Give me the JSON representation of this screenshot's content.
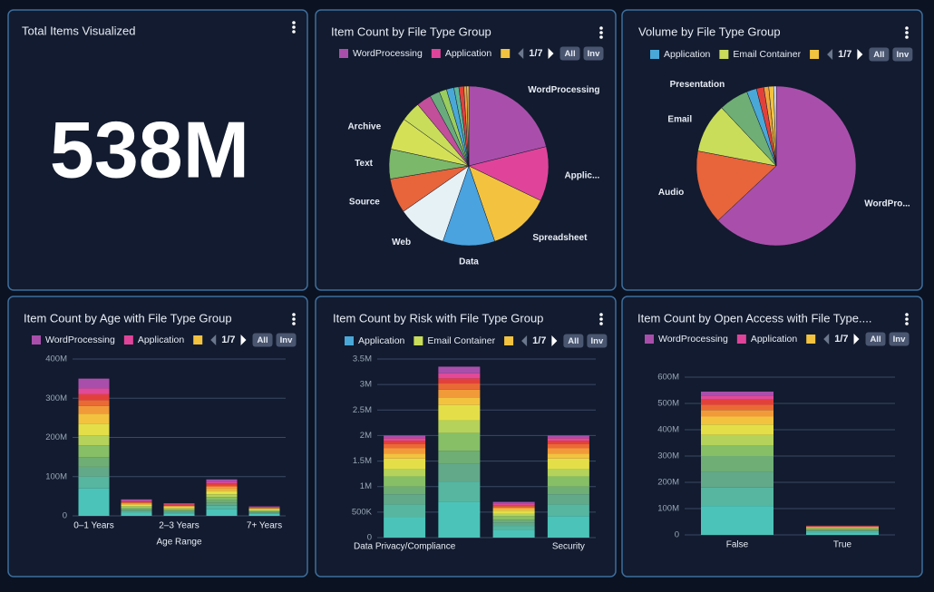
{
  "kpi": {
    "title": "Total Items Visualized",
    "value": "538M"
  },
  "chart_data": [
    {
      "type": "pie",
      "title": "Item Count by File Type Group",
      "categories": [
        "WordProcessing",
        "Applic...",
        "Spreadsheet",
        "Data",
        "Web",
        "Source",
        "Text",
        "Archive",
        null,
        null,
        null,
        null,
        null,
        null,
        null,
        null,
        null
      ],
      "values": [
        21,
        11,
        12.5,
        10.5,
        10,
        7,
        6,
        6.5,
        4,
        3,
        2,
        1.5,
        1.5,
        1,
        1,
        0.6,
        0.4
      ],
      "colors": [
        "#a94fab",
        "#e0449a",
        "#f3c340",
        "#4aa3df",
        "#e6f1f5",
        "#e8643b",
        "#7cb86a",
        "#d4e157",
        "#c9dd5a",
        "#c24f9a",
        "#6aab7d",
        "#9acd5e",
        "#4aa8d8",
        "#5bb89a",
        "#e2413b",
        "#f0a53c",
        "#f3d34a"
      ],
      "legend": [
        {
          "name": "WordProcessing",
          "color": "#a94fab"
        },
        {
          "name": "Application",
          "color": "#e0449a"
        },
        {
          "name": null,
          "color": "#f3c340"
        }
      ],
      "legend_page": "1/7",
      "legend_buttons": [
        "All",
        "Inv"
      ]
    },
    {
      "type": "pie",
      "title": "Volume by File Type Group",
      "categories": [
        "WordPro...",
        "Audio",
        "Email",
        "Presentation",
        null,
        null,
        null,
        null,
        null
      ],
      "values": [
        63,
        15,
        10,
        6,
        2,
        1.5,
        1,
        1,
        0.5
      ],
      "colors": [
        "#a94fab",
        "#e8643b",
        "#c9dd5a",
        "#6fae74",
        "#4aa8d8",
        "#e2413b",
        "#f0a53c",
        "#f3c340",
        "#e6f1f5"
      ],
      "legend": [
        {
          "name": "Application",
          "color": "#4aa8d8"
        },
        {
          "name": "Email Container",
          "color": "#c9dd5a"
        },
        {
          "name": null,
          "color": "#f3c340"
        }
      ],
      "legend_page": "1/7",
      "legend_buttons": [
        "All",
        "Inv"
      ]
    },
    {
      "type": "bar",
      "stacked": true,
      "title": "Item Count by Age with File Type Group",
      "xlabel": "Age Range",
      "categories": [
        "0–1 Years",
        null,
        "2–3 Years",
        null,
        "7+ Years"
      ],
      "ylim": [
        0,
        400000000
      ],
      "yticks": [
        0,
        {
          "value": 100000000,
          "label": "100M"
        },
        {
          "value": 200000000,
          "label": "200M"
        },
        {
          "value": 300000000,
          "label": "300M"
        },
        {
          "value": 400000000,
          "label": "400M"
        }
      ],
      "grid": true,
      "series": [
        {
          "color": "#4cc3b8",
          "values": [
            70000000,
            8000000,
            6000000,
            18000000,
            5000000
          ]
        },
        {
          "color": "#56b6a0",
          "values": [
            30000000,
            4000000,
            3000000,
            8000000,
            2000000
          ]
        },
        {
          "color": "#62a98a",
          "values": [
            25000000,
            3000000,
            3000000,
            7000000,
            2000000
          ]
        },
        {
          "color": "#6fae74",
          "values": [
            25000000,
            3000000,
            2000000,
            7000000,
            2000000
          ]
        },
        {
          "color": "#86bf66",
          "values": [
            30000000,
            4000000,
            3000000,
            8000000,
            2000000
          ]
        },
        {
          "color": "#b5d25a",
          "values": [
            25000000,
            3000000,
            2000000,
            7000000,
            2000000
          ]
        },
        {
          "color": "#e4df48",
          "values": [
            30000000,
            3000000,
            3000000,
            8000000,
            2000000
          ]
        },
        {
          "color": "#f3c340",
          "values": [
            25000000,
            3000000,
            2000000,
            6000000,
            2000000
          ]
        },
        {
          "color": "#f19a3a",
          "values": [
            20000000,
            2000000,
            2000000,
            5000000,
            1000000
          ]
        },
        {
          "color": "#ea6a36",
          "values": [
            15000000,
            2000000,
            1000000,
            4000000,
            1000000
          ]
        },
        {
          "color": "#e2413b",
          "values": [
            15000000,
            2000000,
            2000000,
            5000000,
            1000000
          ]
        },
        {
          "color": "#e04a98",
          "values": [
            15000000,
            2000000,
            1000000,
            4000000,
            1000000
          ]
        },
        {
          "color": "#a94fab",
          "values": [
            25000000,
            3000000,
            2000000,
            6000000,
            1000000
          ]
        }
      ],
      "legend": [
        {
          "name": "WordProcessing",
          "color": "#a94fab"
        },
        {
          "name": "Application",
          "color": "#e0449a"
        },
        {
          "name": null,
          "color": "#f3c340"
        }
      ],
      "legend_page": "1/7",
      "legend_buttons": [
        "All",
        "Inv"
      ]
    },
    {
      "type": "bar",
      "stacked": true,
      "title": "Item Count by Risk with File Type Group",
      "categories": [
        "Data Privacy/Compliance",
        null,
        null,
        "Security"
      ],
      "ylim": [
        0,
        3500000
      ],
      "yticks": [
        0,
        {
          "value": 500000,
          "label": "500K"
        },
        {
          "value": 1000000,
          "label": "1M"
        },
        {
          "value": 1500000,
          "label": "1.5M"
        },
        {
          "value": 2000000,
          "label": "2M"
        },
        {
          "value": 2500000,
          "label": "2.5M"
        },
        {
          "value": 3000000,
          "label": "3M"
        },
        {
          "value": 3500000,
          "label": "3.5M"
        }
      ],
      "grid": true,
      "series": [
        {
          "color": "#4cc3b8",
          "values": [
            400000,
            700000,
            150000,
            420000
          ]
        },
        {
          "color": "#56b6a0",
          "values": [
            250000,
            400000,
            80000,
            230000
          ]
        },
        {
          "color": "#62a98a",
          "values": [
            200000,
            350000,
            70000,
            200000
          ]
        },
        {
          "color": "#6fae74",
          "values": [
            150000,
            250000,
            50000,
            150000
          ]
        },
        {
          "color": "#86bf66",
          "values": [
            200000,
            350000,
            70000,
            200000
          ]
        },
        {
          "color": "#b5d25a",
          "values": [
            150000,
            250000,
            50000,
            150000
          ]
        },
        {
          "color": "#e4df48",
          "values": [
            200000,
            300000,
            60000,
            200000
          ]
        },
        {
          "color": "#f3c340",
          "values": [
            100000,
            150000,
            30000,
            100000
          ]
        },
        {
          "color": "#f19a3a",
          "values": [
            100000,
            150000,
            30000,
            100000
          ]
        },
        {
          "color": "#ea6a36",
          "values": [
            80000,
            120000,
            30000,
            80000
          ]
        },
        {
          "color": "#e2413b",
          "values": [
            70000,
            100000,
            20000,
            70000
          ]
        },
        {
          "color": "#e04a98",
          "values": [
            50000,
            100000,
            30000,
            50000
          ]
        },
        {
          "color": "#a94fab",
          "values": [
            50000,
            130000,
            30000,
            50000
          ]
        }
      ],
      "legend": [
        {
          "name": "Application",
          "color": "#4aa8d8"
        },
        {
          "name": "Email Container",
          "color": "#c9dd5a"
        },
        {
          "name": null,
          "color": "#f3c340"
        }
      ],
      "legend_page": "1/7",
      "legend_buttons": [
        "All",
        "Inv"
      ]
    },
    {
      "type": "bar",
      "stacked": true,
      "title": "Item Count by Open Access with File Type....",
      "categories": [
        "False",
        "True"
      ],
      "ylim": [
        0,
        600000000
      ],
      "yticks": [
        0,
        {
          "value": 100000000,
          "label": "100M"
        },
        {
          "value": 200000000,
          "label": "200M"
        },
        {
          "value": 300000000,
          "label": "300M"
        },
        {
          "value": 400000000,
          "label": "400M"
        },
        {
          "value": 500000000,
          "label": "500M"
        },
        {
          "value": 600000000,
          "label": "600M"
        }
      ],
      "grid": true,
      "series": [
        {
          "color": "#4cc3b8",
          "values": [
            110000000,
            10000000
          ]
        },
        {
          "color": "#56b6a0",
          "values": [
            70000000,
            4000000
          ]
        },
        {
          "color": "#62a98a",
          "values": [
            60000000,
            3000000
          ]
        },
        {
          "color": "#6fae74",
          "values": [
            60000000,
            3000000
          ]
        },
        {
          "color": "#86bf66",
          "values": [
            40000000,
            3000000
          ]
        },
        {
          "color": "#b5d25a",
          "values": [
            40000000,
            2000000
          ]
        },
        {
          "color": "#e4df48",
          "values": [
            40000000,
            2000000
          ]
        },
        {
          "color": "#f3c340",
          "values": [
            30000000,
            2000000
          ]
        },
        {
          "color": "#f19a3a",
          "values": [
            25000000,
            2000000
          ]
        },
        {
          "color": "#ea6a36",
          "values": [
            20000000,
            1000000
          ]
        },
        {
          "color": "#e2413b",
          "values": [
            20000000,
            1000000
          ]
        },
        {
          "color": "#e04a98",
          "values": [
            15000000,
            1000000
          ]
        },
        {
          "color": "#a94fab",
          "values": [
            15000000,
            1000000
          ]
        }
      ],
      "legend": [
        {
          "name": "WordProcessing",
          "color": "#a94fab"
        },
        {
          "name": "Application",
          "color": "#e0449a"
        },
        {
          "name": null,
          "color": "#f3c340"
        }
      ],
      "legend_page": "1/7",
      "legend_buttons": [
        "All",
        "Inv"
      ]
    }
  ]
}
